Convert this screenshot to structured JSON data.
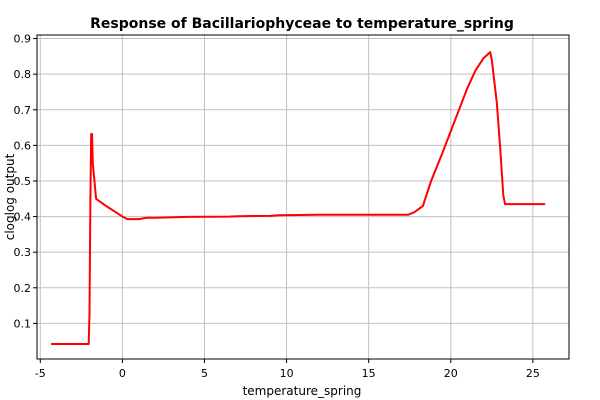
{
  "chart_data": {
    "type": "line",
    "title": "Response of Bacillariophyceae to temperature_spring",
    "xlabel": "temperature_spring",
    "ylabel": "cloglog output",
    "xlim": [
      -5.2,
      27.2
    ],
    "ylim": [
      0.0,
      0.91
    ],
    "x_ticks": [
      -5,
      0,
      5,
      10,
      15,
      20,
      25
    ],
    "y_ticks": [
      0.1,
      0.2,
      0.3,
      0.4,
      0.5,
      0.6,
      0.7,
      0.8,
      0.9
    ],
    "grid": true,
    "series_color": "#ff0000",
    "series": [
      {
        "x": [
          -4.3,
          -2.05,
          -2.0,
          -1.95,
          -1.9,
          -1.85,
          -1.8,
          -1.6,
          -1.3,
          -1.0,
          -0.5,
          0.0,
          0.3,
          1.0,
          1.5,
          2.0,
          4.0,
          6.5,
          7.0,
          9.0,
          9.5,
          12.0,
          15.0,
          17.4,
          17.8,
          18.3,
          18.8,
          19.5,
          20.0,
          20.5,
          21.0,
          21.5,
          22.0,
          22.4,
          22.5,
          22.8,
          23.0,
          23.2,
          23.3,
          24.0,
          25.7
        ],
        "y": [
          0.042,
          0.042,
          0.13,
          0.45,
          0.632,
          0.632,
          0.55,
          0.45,
          0.44,
          0.43,
          0.415,
          0.4,
          0.393,
          0.393,
          0.397,
          0.397,
          0.399,
          0.4,
          0.401,
          0.402,
          0.404,
          0.405,
          0.405,
          0.405,
          0.413,
          0.43,
          0.5,
          0.58,
          0.64,
          0.7,
          0.76,
          0.81,
          0.845,
          0.862,
          0.84,
          0.72,
          0.6,
          0.46,
          0.435,
          0.435,
          0.435
        ]
      }
    ]
  }
}
